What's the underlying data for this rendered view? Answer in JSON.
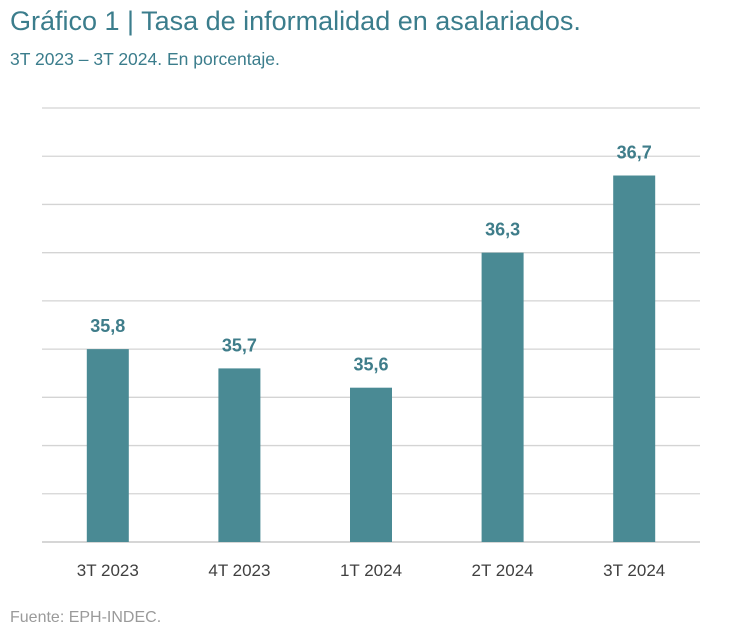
{
  "chart_data": {
    "type": "bar",
    "title": "Gráfico 1 | Tasa de informalidad en asalariados.",
    "subtitle": "3T 2023 – 3T 2024. En porcentaje.",
    "categories": [
      "3T 2023",
      "4T 2023",
      "1T 2024",
      "2T 2024",
      "3T 2024"
    ],
    "values": [
      35.8,
      35.7,
      35.6,
      36.3,
      36.7
    ],
    "value_labels": [
      "35,8",
      "35,7",
      "35,6",
      "36,3",
      "36,7"
    ],
    "ylim": [
      34.8,
      37.05
    ],
    "y_gridlines": [
      34.8,
      35.05,
      35.3,
      35.55,
      35.8,
      36.05,
      36.3,
      36.55,
      36.8,
      37.05
    ],
    "grid": true,
    "legend": "none",
    "colors": {
      "bar": "#4a8a94",
      "value_label": "#3f7d8a",
      "grid": "#d4d4d4",
      "axis": "#c8c8c8",
      "tick_label": "#404040"
    }
  },
  "source": "Fuente: EPH-INDEC."
}
